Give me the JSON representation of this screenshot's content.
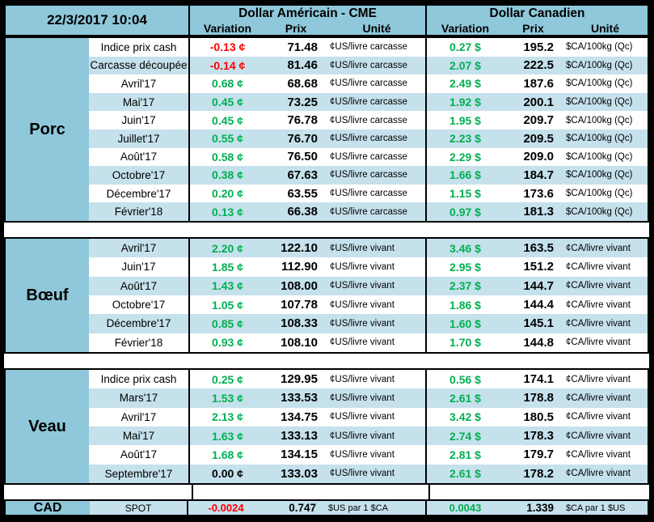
{
  "header": {
    "timestamp": "22/3/2017 10:04",
    "us_group": "Dollar Américain - CME",
    "ca_group": "Dollar Canadien",
    "subheaders": {
      "variation": "Variation",
      "prix": "Prix",
      "unite": "Unité"
    }
  },
  "colors": {
    "positive_green": "#00b050",
    "negative_red": "#ff0000",
    "neutral_black": "#000000",
    "header_blue": "#8fc8da",
    "stripe_blue": "#c5e1ec"
  },
  "sections": [
    {
      "name": "Porc",
      "first_row_shaded": false,
      "us_unit": "¢US/livre carcasse",
      "ca_unit": "$CA/100kg (Qc)",
      "rows": [
        {
          "label": "Indice prix cash",
          "us_var": "-0.13 ¢",
          "us_prix": "71.48",
          "ca_var": "0.27 $",
          "ca_prix": "195.2"
        },
        {
          "label": "Carcasse découpée",
          "us_var": "-0.14 ¢",
          "us_prix": "81.46",
          "ca_var": "2.07 $",
          "ca_prix": "222.5"
        },
        {
          "label": "Avril'17",
          "us_var": "0.68 ¢",
          "us_prix": "68.68",
          "ca_var": "2.49 $",
          "ca_prix": "187.6"
        },
        {
          "label": "Mai'17",
          "us_var": "0.45 ¢",
          "us_prix": "73.25",
          "ca_var": "1.92 $",
          "ca_prix": "200.1"
        },
        {
          "label": "Juin'17",
          "us_var": "0.45 ¢",
          "us_prix": "76.78",
          "ca_var": "1.95 $",
          "ca_prix": "209.7"
        },
        {
          "label": "Juillet'17",
          "us_var": "0.55 ¢",
          "us_prix": "76.70",
          "ca_var": "2.23 $",
          "ca_prix": "209.5"
        },
        {
          "label": "Août'17",
          "us_var": "0.58 ¢",
          "us_prix": "76.50",
          "ca_var": "2.29 $",
          "ca_prix": "209.0"
        },
        {
          "label": "Octobre'17",
          "us_var": "0.38 ¢",
          "us_prix": "67.63",
          "ca_var": "1.66 $",
          "ca_prix": "184.7"
        },
        {
          "label": "Décembre'17",
          "us_var": "0.20 ¢",
          "us_prix": "63.55",
          "ca_var": "1.15 $",
          "ca_prix": "173.6"
        },
        {
          "label": "Février'18",
          "us_var": "0.13 ¢",
          "us_prix": "66.38",
          "ca_var": "0.97 $",
          "ca_prix": "181.3"
        }
      ]
    },
    {
      "name": "Bœuf",
      "first_row_shaded": true,
      "us_unit": "¢US/livre vivant",
      "ca_unit": "¢CA/livre vivant",
      "rows": [
        {
          "label": "Avril'17",
          "us_var": "2.20 ¢",
          "us_prix": "122.10",
          "ca_var": "3.46 $",
          "ca_prix": "163.5"
        },
        {
          "label": "Juin'17",
          "us_var": "1.85 ¢",
          "us_prix": "112.90",
          "ca_var": "2.95 $",
          "ca_prix": "151.2"
        },
        {
          "label": "Août'17",
          "us_var": "1.43 ¢",
          "us_prix": "108.00",
          "ca_var": "2.37 $",
          "ca_prix": "144.7"
        },
        {
          "label": "Octobre'17",
          "us_var": "1.05 ¢",
          "us_prix": "107.78",
          "ca_var": "1.86 $",
          "ca_prix": "144.4"
        },
        {
          "label": "Décembre'17",
          "us_var": "0.85 ¢",
          "us_prix": "108.33",
          "ca_var": "1.60 $",
          "ca_prix": "145.1"
        },
        {
          "label": "Février'18",
          "us_var": "0.93 ¢",
          "us_prix": "108.10",
          "ca_var": "1.70 $",
          "ca_prix": "144.8"
        }
      ]
    },
    {
      "name": "Veau",
      "first_row_shaded": false,
      "us_unit": "¢US/livre vivant",
      "ca_unit": "¢CA/livre vivant",
      "rows": [
        {
          "label": "Indice prix cash",
          "us_var": "0.25 ¢",
          "us_prix": "129.95",
          "ca_var": "0.56 $",
          "ca_prix": "174.1"
        },
        {
          "label": "Mars'17",
          "us_var": "1.53 ¢",
          "us_prix": "133.53",
          "ca_var": "2.61 $",
          "ca_prix": "178.8"
        },
        {
          "label": "Avril'17",
          "us_var": "2.13 ¢",
          "us_prix": "134.75",
          "ca_var": "3.42 $",
          "ca_prix": "180.5"
        },
        {
          "label": "Mai'17",
          "us_var": "1.63 ¢",
          "us_prix": "133.13",
          "ca_var": "2.74 $",
          "ca_prix": "178.3"
        },
        {
          "label": "Août'17",
          "us_var": "1.68 ¢",
          "us_prix": "134.15",
          "ca_var": "2.81 $",
          "ca_prix": "179.7"
        },
        {
          "label": "Septembre'17",
          "us_var": "0.00 ¢",
          "us_prix": "133.03",
          "ca_var": "2.61 $",
          "ca_prix": "178.2"
        }
      ]
    }
  ],
  "spot": {
    "category": "CAD",
    "label": "SPOT",
    "us_var": "-0.0024",
    "us_prix": "0.747",
    "us_unit": "$US par 1 $CA",
    "ca_var": "0.0043",
    "ca_prix": "1.339",
    "ca_unit": "$CA par 1 $US"
  }
}
